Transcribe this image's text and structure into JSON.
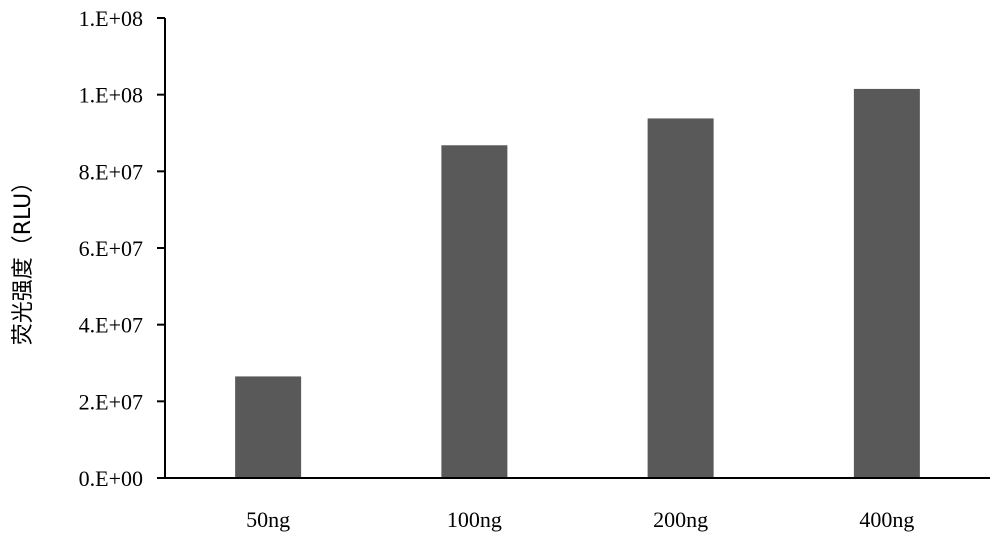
{
  "chart_data": {
    "type": "bar",
    "categories": [
      "50ng",
      "100ng",
      "200ng",
      "400ng"
    ],
    "values": [
      26500000,
      86800000,
      93800000,
      101500000
    ],
    "title": "",
    "xlabel": "",
    "ylabel": "荧光强度（RLU）",
    "ylim": [
      0,
      120000000
    ],
    "y_ticks": [
      0,
      20000000,
      40000000,
      60000000,
      80000000,
      100000000,
      120000000
    ],
    "y_tick_labels": [
      "0.E+00",
      "2.E+07",
      "4.E+07",
      "6.E+07",
      "8.E+07",
      "1.E+08",
      "1.E+08"
    ],
    "grid": false,
    "legend": "none",
    "bar_color": "#595959",
    "axis_color": "#000000"
  }
}
